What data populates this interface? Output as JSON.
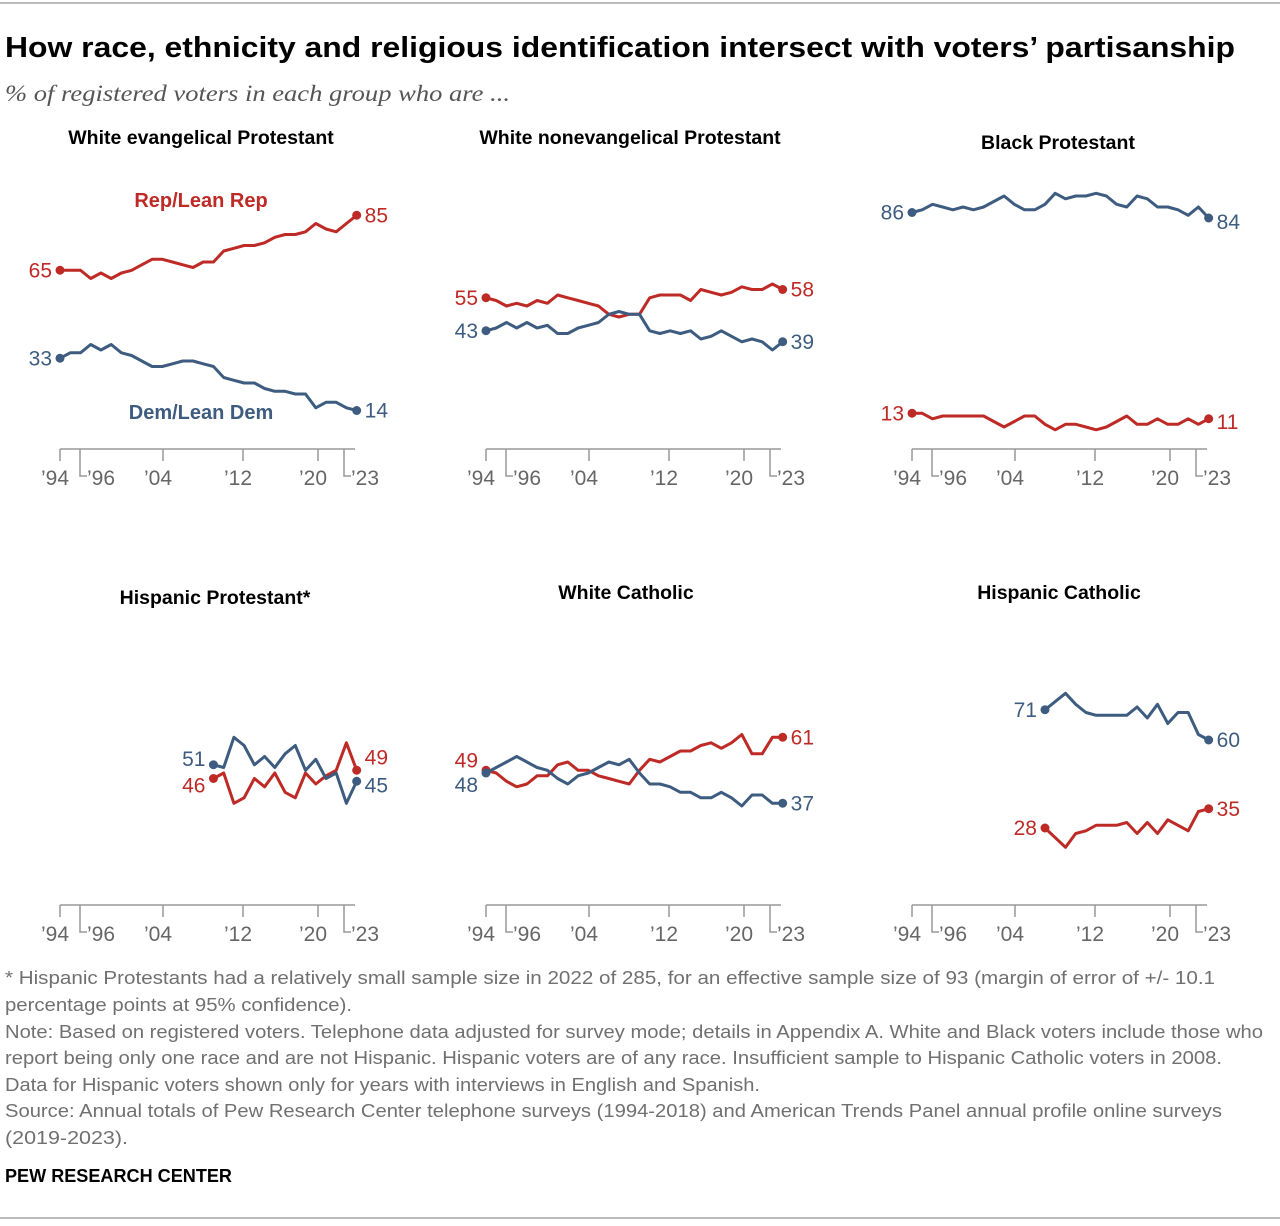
{
  "header": {
    "title": "How race, ethnicity and religious identification intersect with voters’ partisanship",
    "subtitle": "% of registered voters in each group who are ..."
  },
  "colors": {
    "rep": "#be2a26",
    "dem": "#3d5c7f",
    "axis": "#999999"
  },
  "series_labels": {
    "rep": "Rep/Lean Rep",
    "dem": "Dem/Lean Dem"
  },
  "x_tick_labels": [
    "’94",
    "’96",
    "’04",
    "’12",
    "’20",
    "’23"
  ],
  "chart_data": [
    {
      "type": "line",
      "title": "White evangelical Protestant",
      "ylim": [
        0,
        100
      ],
      "x": [
        1994,
        1995,
        1996,
        1997,
        1998,
        1999,
        2000,
        2001,
        2002,
        2003,
        2004,
        2005,
        2006,
        2007,
        2008,
        2009,
        2010,
        2011,
        2012,
        2013,
        2014,
        2015,
        2016,
        2017,
        2018,
        2019,
        2020,
        2021,
        2022,
        2023
      ],
      "series": [
        {
          "name": "Rep/Lean Rep",
          "key": "rep",
          "values": [
            65,
            65,
            65,
            62,
            64,
            62,
            64,
            65,
            67,
            69,
            69,
            68,
            67,
            66,
            68,
            68,
            72,
            73,
            74,
            74,
            75,
            77,
            78,
            78,
            79,
            82,
            80,
            79,
            82,
            85
          ]
        },
        {
          "name": "Dem/Lean Dem",
          "key": "dem",
          "values": [
            33,
            35,
            35,
            38,
            36,
            38,
            35,
            34,
            32,
            30,
            30,
            31,
            32,
            32,
            31,
            30,
            26,
            25,
            24,
            24,
            22,
            21,
            21,
            20,
            20,
            15,
            17,
            17,
            15,
            14
          ]
        }
      ]
    },
    {
      "type": "line",
      "title": "White nonevangelical Protestant",
      "ylim": [
        0,
        100
      ],
      "x": [
        1994,
        1995,
        1996,
        1997,
        1998,
        1999,
        2000,
        2001,
        2002,
        2003,
        2004,
        2005,
        2006,
        2007,
        2008,
        2009,
        2010,
        2011,
        2012,
        2013,
        2014,
        2015,
        2016,
        2017,
        2018,
        2019,
        2020,
        2021,
        2022,
        2023
      ],
      "series": [
        {
          "key": "rep",
          "values": [
            55,
            54,
            52,
            53,
            52,
            54,
            53,
            56,
            55,
            54,
            53,
            52,
            49,
            48,
            49,
            49,
            55,
            56,
            56,
            56,
            54,
            58,
            57,
            56,
            57,
            59,
            58,
            58,
            60,
            58
          ]
        },
        {
          "key": "dem",
          "values": [
            43,
            44,
            46,
            44,
            46,
            44,
            45,
            42,
            42,
            44,
            45,
            46,
            49,
            50,
            49,
            49,
            43,
            42,
            43,
            42,
            43,
            40,
            41,
            43,
            41,
            39,
            40,
            39,
            36,
            39
          ]
        }
      ]
    },
    {
      "type": "line",
      "title": "Black Protestant",
      "ylim": [
        0,
        100
      ],
      "x": [
        1994,
        1995,
        1996,
        1997,
        1998,
        1999,
        2000,
        2001,
        2002,
        2003,
        2004,
        2005,
        2006,
        2007,
        2008,
        2009,
        2010,
        2011,
        2012,
        2013,
        2014,
        2015,
        2016,
        2017,
        2018,
        2019,
        2020,
        2021,
        2022,
        2023
      ],
      "series": [
        {
          "key": "rep",
          "values": [
            13,
            13,
            11,
            12,
            12,
            12,
            12,
            12,
            10,
            8,
            10,
            12,
            12,
            9,
            7,
            9,
            9,
            8,
            7,
            8,
            10,
            12,
            9,
            9,
            11,
            9,
            9,
            11,
            9,
            11
          ]
        },
        {
          "key": "dem",
          "values": [
            86,
            87,
            89,
            88,
            87,
            88,
            87,
            88,
            90,
            92,
            89,
            87,
            87,
            89,
            93,
            91,
            92,
            92,
            93,
            92,
            89,
            88,
            92,
            91,
            88,
            88,
            87,
            85,
            88,
            84
          ]
        }
      ]
    },
    {
      "type": "line",
      "title": "Hispanic Protestant*",
      "ylim": [
        0,
        100
      ],
      "x": [
        1994,
        1995,
        1996,
        1997,
        1998,
        1999,
        2000,
        2001,
        2002,
        2003,
        2004,
        2005,
        2006,
        2007,
        2008,
        2009,
        2010,
        2011,
        2012,
        2013,
        2014,
        2015,
        2016,
        2017,
        2018,
        2019,
        2020,
        2021,
        2022,
        2023
      ],
      "series": [
        {
          "key": "rep",
          "values": [
            null,
            null,
            null,
            null,
            null,
            null,
            null,
            null,
            null,
            null,
            null,
            null,
            null,
            null,
            null,
            46,
            48,
            37,
            39,
            46,
            43,
            48,
            41,
            39,
            48,
            44,
            47,
            49,
            59,
            49
          ]
        },
        {
          "key": "dem",
          "values": [
            null,
            null,
            null,
            null,
            null,
            null,
            null,
            null,
            null,
            null,
            null,
            null,
            null,
            null,
            null,
            51,
            50,
            61,
            58,
            51,
            54,
            50,
            55,
            58,
            49,
            53,
            46,
            48,
            37,
            45
          ]
        }
      ]
    },
    {
      "type": "line",
      "title": "White Catholic",
      "ylim": [
        0,
        100
      ],
      "x": [
        1994,
        1995,
        1996,
        1997,
        1998,
        1999,
        2000,
        2001,
        2002,
        2003,
        2004,
        2005,
        2006,
        2007,
        2008,
        2009,
        2010,
        2011,
        2012,
        2013,
        2014,
        2015,
        2016,
        2017,
        2018,
        2019,
        2020,
        2021,
        2022,
        2023
      ],
      "series": [
        {
          "key": "rep",
          "values": [
            49,
            48,
            45,
            43,
            44,
            47,
            47,
            51,
            52,
            49,
            49,
            47,
            46,
            45,
            44,
            49,
            53,
            52,
            54,
            56,
            56,
            58,
            59,
            57,
            59,
            62,
            55,
            55,
            61,
            61
          ]
        },
        {
          "key": "dem",
          "values": [
            48,
            50,
            52,
            54,
            52,
            50,
            49,
            46,
            44,
            47,
            48,
            50,
            52,
            51,
            53,
            48,
            44,
            44,
            43,
            41,
            41,
            39,
            39,
            41,
            39,
            36,
            40,
            40,
            37,
            37
          ]
        }
      ]
    },
    {
      "type": "line",
      "title": "Hispanic Catholic",
      "ylim": [
        0,
        100
      ],
      "x": [
        1994,
        1995,
        1996,
        1997,
        1998,
        1999,
        2000,
        2001,
        2002,
        2003,
        2004,
        2005,
        2006,
        2007,
        2008,
        2009,
        2010,
        2011,
        2012,
        2013,
        2014,
        2015,
        2016,
        2017,
        2018,
        2019,
        2020,
        2021,
        2022,
        2023
      ],
      "series": [
        {
          "key": "rep",
          "values": [
            null,
            null,
            null,
            null,
            null,
            null,
            null,
            null,
            null,
            null,
            null,
            null,
            null,
            28,
            null,
            21,
            26,
            27,
            29,
            29,
            29,
            30,
            26,
            30,
            26,
            31,
            29,
            27,
            34,
            35
          ]
        },
        {
          "key": "dem",
          "values": [
            null,
            null,
            null,
            null,
            null,
            null,
            null,
            null,
            null,
            null,
            null,
            null,
            null,
            71,
            null,
            77,
            73,
            70,
            69,
            69,
            69,
            69,
            72,
            68,
            73,
            66,
            70,
            70,
            62,
            60
          ]
        }
      ]
    }
  ],
  "footer": {
    "lines": [
      "* Hispanic Protestants had a relatively small sample size in 2022 of 285, for an effective sample size of 93 (margin of error of +/- 10.1",
      "percentage points at 95% confidence).",
      "Note: Based on registered voters. Telephone data adjusted for survey mode; details in Appendix A. White and Black voters include those who",
      "report being only one race and are not Hispanic. Hispanic voters are of any race. Insufficient sample to Hispanic Catholic voters in 2008.",
      "Data for Hispanic voters shown only for years with interviews in English and Spanish.",
      "Source: Annual totals of Pew Research Center telephone surveys (1994-2018) and American Trends Panel annual profile online surveys",
      "(2019-2023)."
    ],
    "brand": "PEW RESEARCH CENTER"
  }
}
